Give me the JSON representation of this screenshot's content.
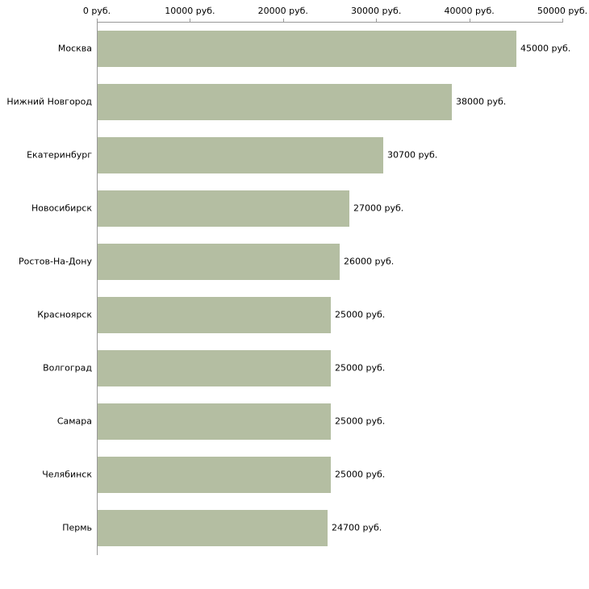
{
  "chart_data": {
    "type": "bar",
    "orientation": "horizontal",
    "title": "",
    "xlabel": "",
    "ylabel": "",
    "unit": "руб.",
    "categories": [
      "Москва",
      "Нижний Новгород",
      "Екатеринбург",
      "Новосибирск",
      "Ростов-На-Дону",
      "Красноярск",
      "Волгоград",
      "Самара",
      "Челябинск",
      "Пермь"
    ],
    "values": [
      45000,
      38000,
      30700,
      27000,
      26000,
      25000,
      25000,
      25000,
      25000,
      24700
    ],
    "value_labels": [
      "45000 руб.",
      "38000 руб.",
      "30700 руб.",
      "27000 руб.",
      "26000 руб.",
      "25000 руб.",
      "25000 руб.",
      "25000 руб.",
      "25000 руб.",
      "24700 руб."
    ],
    "x_ticks": [
      0,
      10000,
      20000,
      30000,
      40000,
      50000
    ],
    "x_tick_labels": [
      "0 руб.",
      "10000 руб.",
      "20000 руб.",
      "30000 руб.",
      "40000 руб.",
      "50000 руб."
    ],
    "xlim": [
      0,
      50000
    ],
    "legend": "none",
    "grid": "off",
    "axis_position": "top-left",
    "bar_color": "#b4bea2",
    "axis_color": "#989898",
    "text_color": "#000000",
    "background": "#ffffff"
  }
}
